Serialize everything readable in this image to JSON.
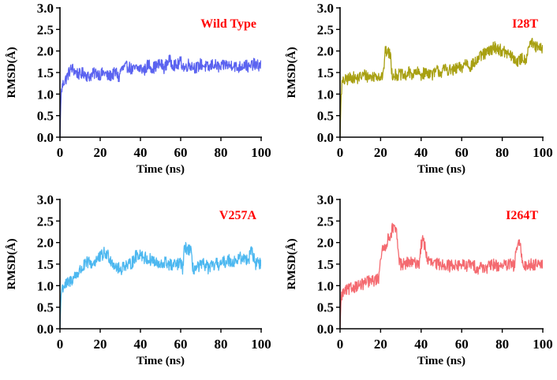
{
  "chart_data": [
    {
      "type": "line",
      "title": "Wild Type",
      "xlabel": "Time (ns)",
      "ylabel": "RMSD(Å)",
      "xlim": [
        0,
        100
      ],
      "ylim": [
        0,
        3
      ],
      "xticks": [
        "0",
        "20",
        "40",
        "60",
        "80",
        "100"
      ],
      "yticks": [
        "0.0",
        "0.5",
        "1.0",
        "1.5",
        "2.0",
        "2.5",
        "3.0"
      ],
      "color": "#5b63f0",
      "title_color": "#ff0000",
      "series": [
        {
          "name": "Wild Type",
          "x": [
            0,
            0.5,
            1,
            2,
            3,
            4,
            5,
            6,
            8,
            10,
            12,
            14,
            16,
            18,
            20,
            22,
            24,
            26,
            28,
            29.5,
            30,
            32,
            34,
            36,
            38,
            40,
            42,
            44,
            46,
            48,
            50,
            52,
            54,
            56,
            58,
            60,
            62,
            64,
            66,
            68,
            70,
            72,
            74,
            76,
            78,
            80,
            82,
            84,
            86,
            88,
            90,
            92,
            94,
            96,
            98,
            100
          ],
          "y": [
            0.0,
            0.95,
            1.15,
            1.3,
            1.35,
            1.45,
            1.55,
            1.6,
            1.5,
            1.45,
            1.5,
            1.4,
            1.45,
            1.5,
            1.45,
            1.5,
            1.4,
            1.45,
            1.5,
            1.35,
            1.55,
            1.6,
            1.65,
            1.55,
            1.6,
            1.6,
            1.55,
            1.7,
            1.6,
            1.65,
            1.7,
            1.6,
            1.8,
            1.7,
            1.65,
            1.75,
            1.6,
            1.7,
            1.65,
            1.6,
            1.7,
            1.65,
            1.6,
            1.7,
            1.65,
            1.6,
            1.7,
            1.65,
            1.7,
            1.6,
            1.65,
            1.7,
            1.6,
            1.7,
            1.65,
            1.7
          ],
          "noise": 0.14
        }
      ]
    },
    {
      "type": "line",
      "title": "I28T",
      "xlabel": "Time (ns)",
      "ylabel": "RMSD(Å)",
      "xlim": [
        0,
        100
      ],
      "ylim": [
        0,
        3
      ],
      "xticks": [
        "0",
        "20",
        "40",
        "60",
        "80",
        "100"
      ],
      "yticks": [
        "0.0",
        "0.5",
        "1.0",
        "1.5",
        "2.0",
        "2.5",
        "3.0"
      ],
      "color": "#a8a012",
      "title_color": "#ff0000",
      "series": [
        {
          "name": "I28T",
          "x": [
            0,
            0.5,
            1,
            2,
            4,
            6,
            8,
            10,
            12,
            14,
            16,
            18,
            20,
            21.5,
            22,
            23,
            24,
            25,
            25.5,
            26,
            28,
            30,
            32,
            34,
            36,
            38,
            40,
            42,
            44,
            46,
            48,
            50,
            52,
            54,
            56,
            58,
            60,
            62,
            64,
            66,
            68,
            70,
            72,
            74,
            76,
            78,
            80,
            82,
            84,
            86,
            88,
            90,
            91,
            92,
            93,
            94,
            96,
            98,
            100
          ],
          "y": [
            0.0,
            0.95,
            1.25,
            1.3,
            1.35,
            1.4,
            1.35,
            1.4,
            1.45,
            1.4,
            1.4,
            1.45,
            1.4,
            1.45,
            1.95,
            2.0,
            1.95,
            1.9,
            1.5,
            1.45,
            1.45,
            1.45,
            1.4,
            1.5,
            1.45,
            1.5,
            1.45,
            1.5,
            1.5,
            1.45,
            1.55,
            1.5,
            1.6,
            1.55,
            1.55,
            1.6,
            1.6,
            1.75,
            1.65,
            1.7,
            1.8,
            1.9,
            1.95,
            2.0,
            2.1,
            2.05,
            2.0,
            1.95,
            1.9,
            1.8,
            1.75,
            1.85,
            1.8,
            1.85,
            2.15,
            2.2,
            2.1,
            2.05,
            2.05
          ],
          "noise": 0.14
        }
      ]
    },
    {
      "type": "line",
      "title": "V257A",
      "xlabel": "Time (ns)",
      "ylabel": "RMSD(Å)",
      "xlim": [
        0,
        100
      ],
      "ylim": [
        0,
        3
      ],
      "xticks": [
        "0",
        "20",
        "40",
        "60",
        "80",
        "100"
      ],
      "yticks": [
        "0.0",
        "0.5",
        "1.0",
        "1.5",
        "2.0",
        "2.5",
        "3.0"
      ],
      "color": "#4db8f0",
      "title_color": "#ff0000",
      "series": [
        {
          "name": "V257A",
          "x": [
            0,
            0.5,
            1,
            2,
            4,
            6,
            8,
            10,
            12,
            14,
            16,
            18,
            20,
            22,
            24,
            26,
            28,
            30,
            32,
            34,
            36,
            38,
            40,
            42,
            44,
            46,
            48,
            50,
            52,
            54,
            56,
            58,
            60,
            61,
            62,
            64,
            65,
            66,
            68,
            70,
            72,
            74,
            76,
            78,
            80,
            82,
            84,
            86,
            88,
            90,
            92,
            94,
            95,
            96,
            97,
            98,
            100
          ],
          "y": [
            0.0,
            0.75,
            0.95,
            1.0,
            1.05,
            1.15,
            1.25,
            1.35,
            1.45,
            1.55,
            1.5,
            1.6,
            1.65,
            1.75,
            1.7,
            1.55,
            1.45,
            1.35,
            1.5,
            1.45,
            1.55,
            1.7,
            1.75,
            1.65,
            1.6,
            1.6,
            1.5,
            1.45,
            1.55,
            1.5,
            1.45,
            1.5,
            1.5,
            1.4,
            1.9,
            1.85,
            1.8,
            1.4,
            1.4,
            1.45,
            1.5,
            1.4,
            1.45,
            1.5,
            1.5,
            1.55,
            1.6,
            1.55,
            1.6,
            1.65,
            1.6,
            1.65,
            1.9,
            1.7,
            1.5,
            1.55,
            1.5
          ],
          "noise": 0.15
        }
      ]
    },
    {
      "type": "line",
      "title": "I264T",
      "xlabel": "Time (ns)",
      "ylabel": "RMSD(Å)",
      "xlim": [
        0,
        100
      ],
      "ylim": [
        0,
        3
      ],
      "xticks": [
        "0",
        "20",
        "40",
        "60",
        "80",
        "100"
      ],
      "yticks": [
        "0.0",
        "0.5",
        "1.0",
        "1.5",
        "2.0",
        "2.5",
        "3.0"
      ],
      "color": "#f46a70",
      "title_color": "#ff0000",
      "series": [
        {
          "name": "I264T",
          "x": [
            0,
            0.5,
            1,
            2,
            4,
            6,
            8,
            10,
            12,
            14,
            16,
            18,
            19,
            20,
            21,
            22,
            23,
            24,
            25,
            26,
            27,
            28,
            29,
            30,
            32,
            34,
            36,
            38,
            39,
            40,
            41,
            42,
            43,
            44,
            46,
            48,
            50,
            52,
            54,
            56,
            58,
            60,
            62,
            64,
            66,
            68,
            70,
            72,
            74,
            76,
            78,
            80,
            82,
            84,
            86,
            87,
            88,
            89,
            90,
            91,
            92,
            94,
            96,
            98,
            100
          ],
          "y": [
            0.0,
            0.7,
            0.8,
            0.85,
            0.9,
            0.95,
            1.0,
            1.0,
            1.05,
            1.1,
            1.1,
            1.15,
            1.15,
            1.7,
            1.8,
            1.9,
            2.0,
            2.1,
            2.2,
            2.35,
            2.3,
            2.2,
            1.6,
            1.5,
            1.5,
            1.55,
            1.5,
            1.55,
            1.5,
            1.95,
            2.05,
            1.9,
            1.6,
            1.55,
            1.5,
            1.5,
            1.5,
            1.5,
            1.45,
            1.5,
            1.45,
            1.5,
            1.45,
            1.5,
            1.45,
            1.4,
            1.45,
            1.4,
            1.45,
            1.5,
            1.45,
            1.5,
            1.45,
            1.5,
            1.45,
            1.9,
            1.95,
            1.9,
            1.5,
            1.5,
            1.45,
            1.5,
            1.5,
            1.55,
            1.5
          ],
          "noise": 0.14
        }
      ]
    }
  ]
}
